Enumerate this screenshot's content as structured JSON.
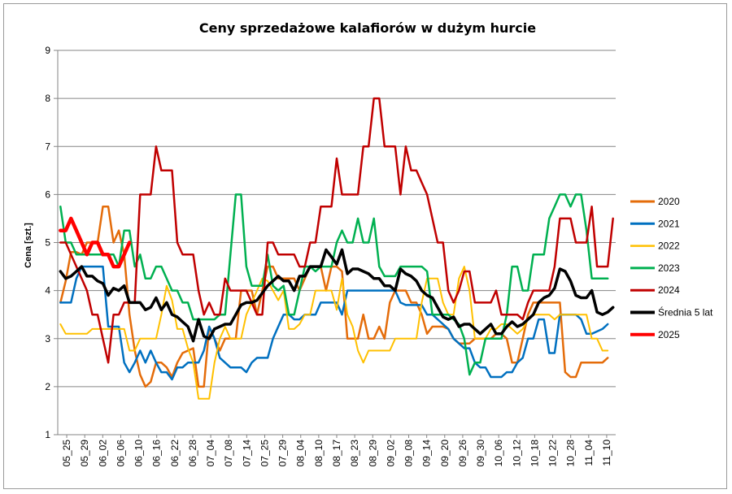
{
  "chart_data": {
    "type": "line",
    "title": "Ceny sprzedażowe kalafiorów w dużym hurcie",
    "ylabel": "Cena [szt.]",
    "xlabel": "",
    "ylim": [
      1,
      9
    ],
    "yticks": [
      "1",
      "2",
      "3",
      "4",
      "5",
      "6",
      "7",
      "8",
      "9"
    ],
    "grid": "horizontal",
    "legend_position": "right",
    "x_tick_labels": [
      "05_25",
      "05_29",
      "06_02",
      "06_06",
      "06_10",
      "06_16",
      "06_22",
      "06_28",
      "07_04",
      "07_08",
      "07_14",
      "07_25",
      "07_29",
      "08_04",
      "08_10",
      "08_17",
      "08_23",
      "08_29",
      "09_02",
      "09_08",
      "09_14",
      "09_20",
      "09_26",
      "09_30",
      "10_06",
      "10_12",
      "10_18",
      "10_22",
      "10_28",
      "11_04",
      "11_10"
    ],
    "series": [
      {
        "name": "2020",
        "color": "#E46C0A",
        "width": 2.5,
        "values": [
          3.75,
          4.2,
          4.8,
          4.8,
          4.75,
          5.0,
          5.0,
          5.0,
          5.75,
          5.75,
          5.0,
          5.25,
          4.75,
          3.5,
          2.75,
          2.25,
          2.0,
          2.1,
          2.5,
          2.5,
          2.4,
          2.2,
          2.5,
          2.7,
          2.75,
          2.8,
          2.0,
          2.0,
          3.25,
          3.0,
          2.75,
          3.0,
          3.0,
          3.0,
          4.0,
          4.0,
          4.0,
          3.5,
          4.0,
          4.5,
          4.5,
          4.25,
          4.25,
          4.25,
          4.25,
          4.0,
          4.25,
          4.5,
          4.5,
          4.5,
          4.0,
          4.5,
          4.5,
          4.4,
          3.0,
          3.0,
          3.0,
          3.5,
          3.0,
          3.0,
          3.25,
          3.0,
          3.75,
          4.0,
          4.0,
          4.0,
          3.75,
          3.75,
          3.5,
          3.1,
          3.25,
          3.25,
          3.25,
          3.2,
          3.0,
          2.9,
          2.9,
          2.9,
          3.0,
          3.0,
          3.0,
          3.0,
          3.1,
          3.1,
          3.0,
          2.5,
          2.5,
          3.0,
          3.5,
          3.75,
          3.75,
          3.75,
          3.75,
          3.75,
          3.75,
          2.3,
          2.2,
          2.2,
          2.5,
          2.5,
          2.5,
          2.5,
          2.5,
          2.6
        ]
      },
      {
        "name": "2021",
        "color": "#0070C0",
        "width": 2.5,
        "values": [
          3.75,
          3.75,
          3.75,
          4.25,
          4.5,
          4.5,
          4.5,
          4.5,
          4.5,
          3.25,
          3.25,
          3.25,
          2.5,
          2.3,
          2.5,
          2.75,
          2.5,
          2.75,
          2.5,
          2.3,
          2.3,
          2.15,
          2.4,
          2.4,
          2.5,
          2.5,
          2.5,
          2.75,
          3.25,
          3.0,
          2.6,
          2.5,
          2.4,
          2.4,
          2.4,
          2.3,
          2.5,
          2.6,
          2.6,
          2.6,
          3.0,
          3.25,
          3.5,
          3.5,
          3.4,
          3.4,
          3.5,
          3.5,
          3.5,
          3.75,
          3.75,
          3.75,
          3.75,
          3.5,
          4.0,
          4.0,
          4.0,
          4.0,
          4.0,
          4.0,
          4.0,
          4.0,
          4.0,
          4.0,
          3.75,
          3.7,
          3.7,
          3.7,
          3.7,
          3.5,
          3.5,
          3.4,
          3.3,
          3.2,
          3.0,
          2.9,
          2.8,
          2.8,
          2.5,
          2.4,
          2.4,
          2.2,
          2.2,
          2.2,
          2.3,
          2.3,
          2.5,
          2.6,
          3.0,
          3.0,
          3.4,
          3.4,
          2.7,
          2.7,
          3.5,
          3.5,
          3.5,
          3.5,
          3.4,
          3.1,
          3.1,
          3.15,
          3.2,
          3.3
        ]
      },
      {
        "name": "2022",
        "color": "#FFC000",
        "width": 2.0,
        "values": [
          3.3,
          3.1,
          3.1,
          3.1,
          3.1,
          3.1,
          3.2,
          3.2,
          3.2,
          3.2,
          3.2,
          3.2,
          3.2,
          2.75,
          2.75,
          3.0,
          3.0,
          3.0,
          3.0,
          3.5,
          4.1,
          3.8,
          3.2,
          3.2,
          2.8,
          2.5,
          1.75,
          1.75,
          1.75,
          2.5,
          3.0,
          3.25,
          3.0,
          3.0,
          3.0,
          3.5,
          3.75,
          4.0,
          4.25,
          4.2,
          4.0,
          3.8,
          4.0,
          3.2,
          3.2,
          3.3,
          3.5,
          3.5,
          4.0,
          4.0,
          4.0,
          4.0,
          3.6,
          4.25,
          3.5,
          3.25,
          2.75,
          2.5,
          2.75,
          2.75,
          2.75,
          2.75,
          2.75,
          3.0,
          3.0,
          3.0,
          3.0,
          3.0,
          3.75,
          4.25,
          4.25,
          4.25,
          3.75,
          3.5,
          3.5,
          4.25,
          4.5,
          4.0,
          3.0,
          3.0,
          3.0,
          3.2,
          3.2,
          3.3,
          3.3,
          3.2,
          3.1,
          3.2,
          3.4,
          3.5,
          3.5,
          3.5,
          3.5,
          3.4,
          3.5,
          3.5,
          3.5,
          3.5,
          3.5,
          3.5,
          3.0,
          3.0,
          2.75,
          2.75
        ]
      },
      {
        "name": "2023",
        "color": "#00B050",
        "width": 2.5,
        "values": [
          5.75,
          5.0,
          5.0,
          4.75,
          4.75,
          4.75,
          4.75,
          4.75,
          4.75,
          4.75,
          4.75,
          4.5,
          5.25,
          5.25,
          4.5,
          4.75,
          4.25,
          4.25,
          4.5,
          4.5,
          4.25,
          4.0,
          4.0,
          3.75,
          3.75,
          3.4,
          3.4,
          3.4,
          3.4,
          3.4,
          3.5,
          3.5,
          4.75,
          6.0,
          6.0,
          4.5,
          4.1,
          4.1,
          4.1,
          4.75,
          4.1,
          4.0,
          4.1,
          3.5,
          3.5,
          4.0,
          4.5,
          4.5,
          4.4,
          4.5,
          4.5,
          4.5,
          5.0,
          5.25,
          5.0,
          5.0,
          5.5,
          5.0,
          5.0,
          5.5,
          4.5,
          4.3,
          4.3,
          4.3,
          4.5,
          4.5,
          4.5,
          4.5,
          4.5,
          4.4,
          3.5,
          3.5,
          3.5,
          3.5,
          3.4,
          3.3,
          3.0,
          2.25,
          2.5,
          2.5,
          3.0,
          3.0,
          3.0,
          3.0,
          3.5,
          4.5,
          4.5,
          4.0,
          4.0,
          4.75,
          4.75,
          4.75,
          5.5,
          5.75,
          6.0,
          6.0,
          5.75,
          6.0,
          6.0,
          5.25,
          4.25,
          4.25,
          4.25,
          4.25
        ]
      },
      {
        "name": "2024",
        "color": "#C00000",
        "width": 2.5,
        "values": [
          5.0,
          5.0,
          4.75,
          4.5,
          4.25,
          4.0,
          3.5,
          3.5,
          3.0,
          2.5,
          3.5,
          3.5,
          3.75,
          3.75,
          3.75,
          6.0,
          6.0,
          6.0,
          7.0,
          6.5,
          6.5,
          6.5,
          5.0,
          4.75,
          4.75,
          4.75,
          4.0,
          3.5,
          3.75,
          3.5,
          3.5,
          4.25,
          4.0,
          4.0,
          4.0,
          4.0,
          3.75,
          3.5,
          3.5,
          5.0,
          5.0,
          4.75,
          4.75,
          4.75,
          4.75,
          4.5,
          4.5,
          5.0,
          5.0,
          5.75,
          5.75,
          5.75,
          6.75,
          6.0,
          6.0,
          6.0,
          6.0,
          7.0,
          7.0,
          8.0,
          8.0,
          7.0,
          7.0,
          7.0,
          6.0,
          7.0,
          6.5,
          6.5,
          6.25,
          6.0,
          5.5,
          5.0,
          5.0,
          4.0,
          3.75,
          4.0,
          4.4,
          4.4,
          3.75,
          3.75,
          3.75,
          3.75,
          4.0,
          3.5,
          3.5,
          3.5,
          3.5,
          3.4,
          3.75,
          4.0,
          4.0,
          4.0,
          4.0,
          4.5,
          5.5,
          5.5,
          5.5,
          5.0,
          5.0,
          5.0,
          5.75,
          4.5,
          4.5,
          4.5,
          5.5
        ]
      },
      {
        "name": "Średnia 5 lat",
        "color": "#000000",
        "width": 3.5,
        "values": [
          4.4,
          4.25,
          4.3,
          4.4,
          4.5,
          4.3,
          4.3,
          4.2,
          4.15,
          3.9,
          4.05,
          4.0,
          4.1,
          3.75,
          3.75,
          3.75,
          3.6,
          3.65,
          3.85,
          3.6,
          3.75,
          3.5,
          3.45,
          3.35,
          3.25,
          2.95,
          3.4,
          3.05,
          3.0,
          3.2,
          3.25,
          3.3,
          3.3,
          3.5,
          3.7,
          3.75,
          3.75,
          3.8,
          3.95,
          4.1,
          4.2,
          4.3,
          4.2,
          4.2,
          4.0,
          4.3,
          4.3,
          4.5,
          4.5,
          4.5,
          4.85,
          4.7,
          4.55,
          4.85,
          4.35,
          4.45,
          4.45,
          4.4,
          4.35,
          4.25,
          4.25,
          4.1,
          4.1,
          4.0,
          4.45,
          4.35,
          4.3,
          4.2,
          4.0,
          3.9,
          3.85,
          3.65,
          3.45,
          3.4,
          3.45,
          3.25,
          3.3,
          3.3,
          3.2,
          3.1,
          3.2,
          3.3,
          3.1,
          3.1,
          3.25,
          3.35,
          3.25,
          3.3,
          3.4,
          3.5,
          3.75,
          3.85,
          3.9,
          4.05,
          4.45,
          4.4,
          4.2,
          3.9,
          3.85,
          3.85,
          4.0,
          3.55,
          3.5,
          3.55,
          3.65
        ]
      },
      {
        "name": "2025",
        "color": "#FF0000",
        "width": 4.5,
        "values": [
          5.25,
          5.25,
          5.5,
          5.25,
          5.0,
          4.75,
          5.0,
          5.0,
          4.75,
          4.75,
          4.5,
          4.5,
          4.75,
          5.0
        ]
      }
    ]
  }
}
